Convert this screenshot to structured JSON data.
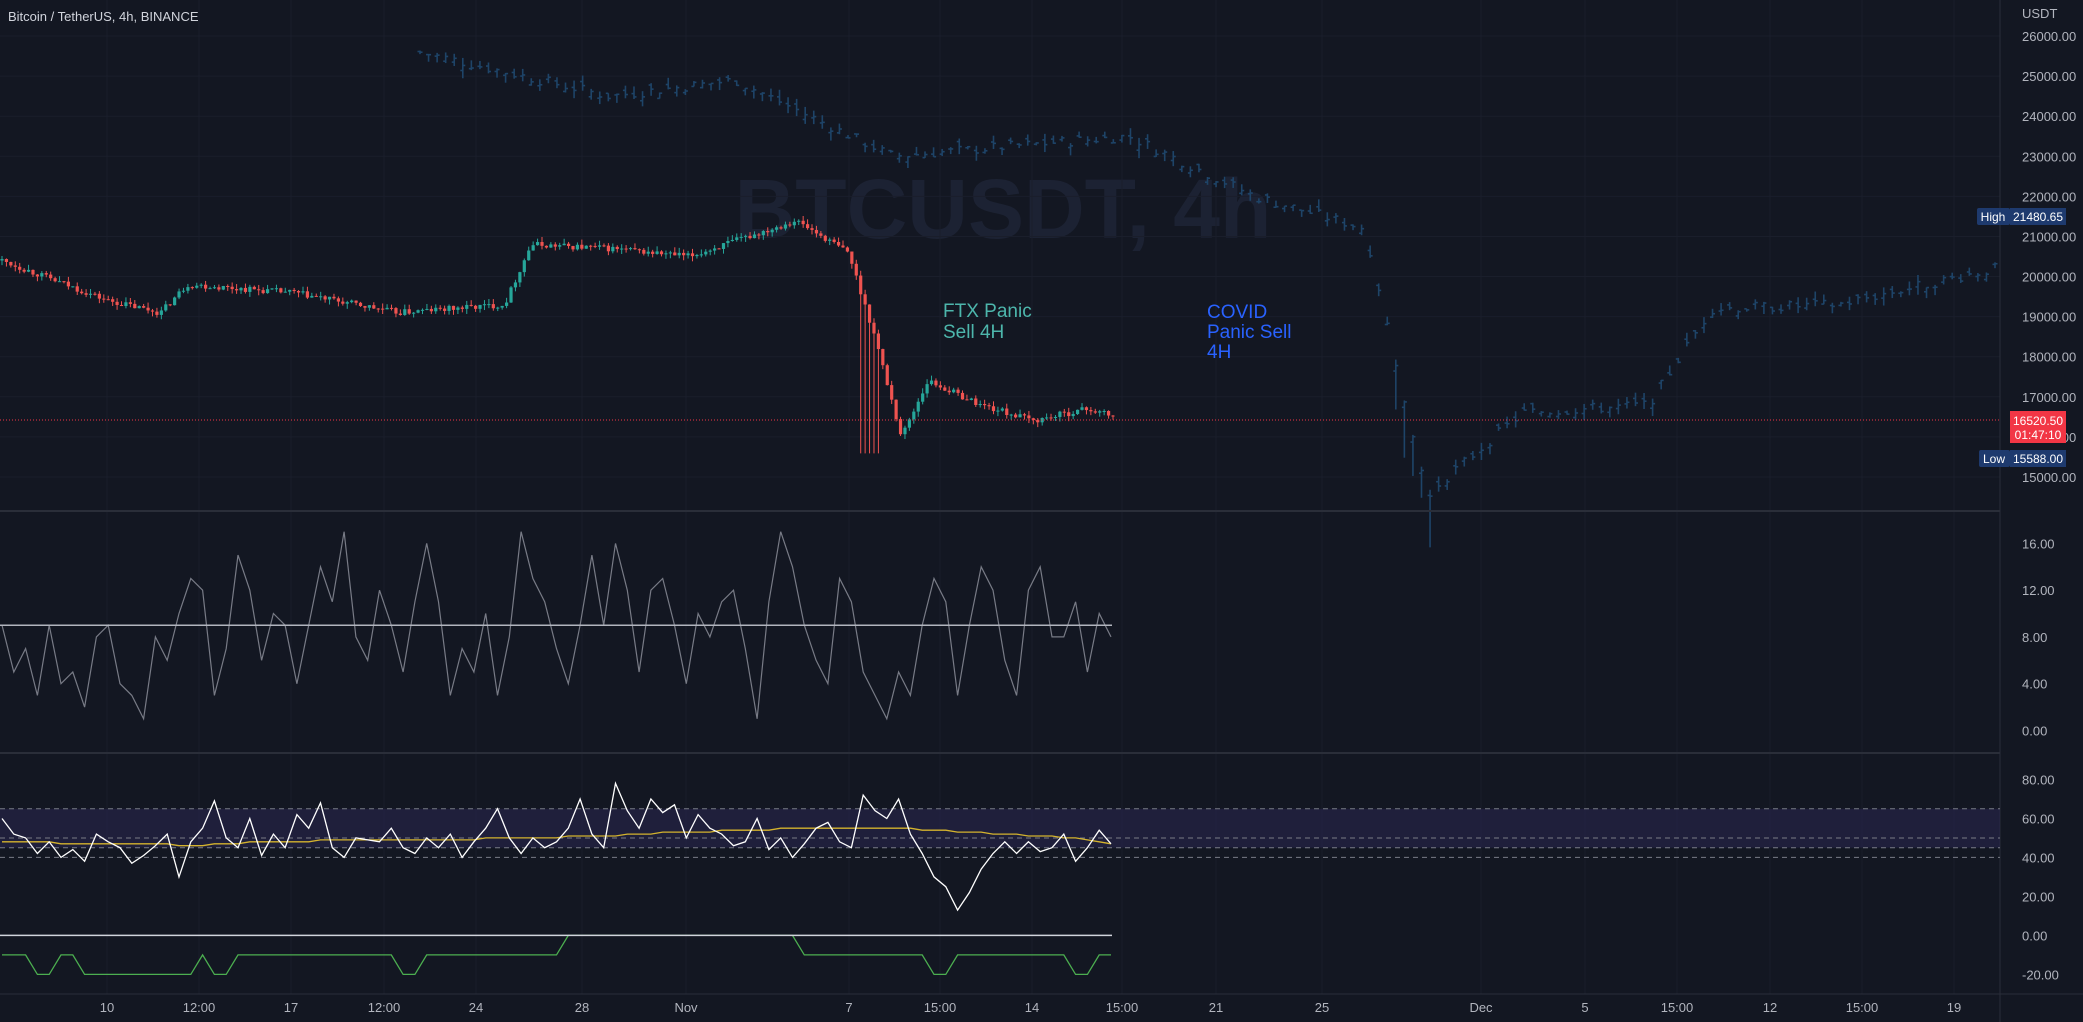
{
  "symbol_title": "Bitcoin / TetherUS, 4h, BINANCE",
  "price_axis_currency": "USDT",
  "watermark": "BTCUSDT, 4h",
  "colors": {
    "background": "#131722",
    "up": "#26a69a",
    "down": "#ef5350",
    "ghost": "#1e4468",
    "ftx_annotation": "#4db6ac",
    "covid_annotation": "#2962ff",
    "axis_text": "#b2b5be",
    "badge_blue": "#1e3a6e",
    "current_price_red": "#f23645",
    "osc_line": "#787b86",
    "rsi_line": "#ffffff",
    "rsi_ma": "#d4b32e",
    "signal_line": "#4caf50",
    "band_fill": "#2a2650"
  },
  "badges": {
    "high_label": "High",
    "high_value": "21480.65",
    "low_label": "Low",
    "low_value": "15588.00",
    "current_price": "16520.50",
    "countdown": "01:47:10"
  },
  "annotations": {
    "ftx_line1": "FTX Panic",
    "ftx_line2": "Sell 4H",
    "covid_line1": "COVID",
    "covid_line2": "Panic Sell",
    "covid_line3": "4H"
  },
  "chart_data": [
    {
      "type": "candlestick",
      "panel": "price",
      "title": "Bitcoin / TetherUS, 4h, BINANCE",
      "ylabel": "USDT",
      "ylim": [
        14300,
        26700
      ],
      "y_ticks": [
        "15000.00",
        "16000.00",
        "17000.00",
        "18000.00",
        "19000.00",
        "20000.00",
        "21000.00",
        "22000.00",
        "23000.00",
        "24000.00",
        "25000.00",
        "26000.00"
      ],
      "x_ticks": [
        "10",
        "12:00",
        "17",
        "12:00",
        "24",
        "28",
        "Nov",
        "7",
        "15:00",
        "14",
        "15:00",
        "21",
        "25",
        "Dec",
        "5",
        "15:00",
        "12",
        "15:00",
        "19"
      ],
      "series": [
        {
          "name": "BTCUSDT 4h",
          "current_price": 16520.5,
          "high_marker": 21480.65,
          "low_marker": 15588.0,
          "approx_close_path": [
            {
              "x": "Oct 6",
              "close": 20400
            },
            {
              "x": "Oct 10",
              "close": 19400
            },
            {
              "x": "Oct 12",
              "close": 19100
            },
            {
              "x": "Oct 13",
              "close": 19800
            },
            {
              "x": "Oct 17",
              "close": 19600
            },
            {
              "x": "Oct 21",
              "close": 19100
            },
            {
              "x": "Oct 25",
              "close": 19300
            },
            {
              "x": "Oct 26",
              "close": 20800
            },
            {
              "x": "Oct 29",
              "close": 20700
            },
            {
              "x": "Nov 1",
              "close": 20500
            },
            {
              "x": "Nov 5",
              "close": 21400
            },
            {
              "x": "Nov 7",
              "close": 20600
            },
            {
              "x": "Nov 8",
              "close": 18500
            },
            {
              "x": "Nov 9",
              "close": 16000
            },
            {
              "x": "Nov 10",
              "close": 17400
            },
            {
              "x": "Nov 12",
              "close": 16800
            },
            {
              "x": "Nov 14",
              "close": 16400
            },
            {
              "x": "Nov 16",
              "close": 16700
            },
            {
              "x": "Nov 17",
              "close": 16520.5
            }
          ]
        },
        {
          "name": "COVID overlay (ghost)",
          "approx_close_path": [
            {
              "x": 0,
              "close": 25600
            },
            {
              "x": 0.12,
              "close": 24500
            },
            {
              "x": 0.2,
              "close": 24900
            },
            {
              "x": 0.3,
              "close": 23000
            },
            {
              "x": 0.45,
              "close": 23500
            },
            {
              "x": 0.53,
              "close": 22000
            },
            {
              "x": 0.6,
              "close": 21200
            },
            {
              "x": 0.62,
              "close": 17800
            },
            {
              "x": 0.64,
              "close": 14600
            },
            {
              "x": 0.7,
              "close": 16600
            },
            {
              "x": 0.78,
              "close": 16800
            },
            {
              "x": 0.82,
              "close": 19200
            },
            {
              "x": 0.9,
              "close": 19300
            },
            {
              "x": 1.0,
              "close": 20200
            }
          ]
        }
      ]
    },
    {
      "type": "line",
      "panel": "oscillator",
      "ylim": [
        -1.5,
        18
      ],
      "y_ticks": [
        "0.00",
        "4.00",
        "8.00",
        "12.00",
        "16.00"
      ],
      "series": [
        {
          "values": [
            9,
            5,
            7,
            3,
            9,
            4,
            5,
            2,
            8,
            9,
            4,
            3,
            1,
            8,
            6,
            10,
            13,
            12,
            3,
            7,
            15,
            12,
            6,
            10,
            9,
            4,
            9,
            14,
            11,
            17,
            8,
            6,
            12,
            9,
            5,
            11,
            16,
            11,
            3,
            7,
            5,
            10,
            3,
            8,
            17,
            13,
            11,
            7,
            4,
            9,
            15,
            9,
            16,
            12,
            5,
            12,
            13,
            9,
            4,
            10,
            8,
            11,
            12,
            7,
            1,
            11,
            17,
            14,
            9,
            6,
            4,
            13,
            11,
            5,
            3,
            1,
            5,
            3,
            9,
            13,
            11,
            3,
            9,
            14,
            12,
            6,
            3,
            12,
            14,
            8,
            8,
            11,
            5,
            10,
            8
          ]
        }
      ],
      "reference_line": 9
    },
    {
      "type": "line",
      "panel": "rsi",
      "ylim": [
        -27,
        90
      ],
      "y_ticks": [
        "-20.00",
        "0.00",
        "20.00",
        "40.00",
        "60.00",
        "80.00"
      ],
      "bands": {
        "upper": 65,
        "middle": 50,
        "lower_a": 45,
        "lower_b": 40
      },
      "series": [
        {
          "name": "RSI",
          "values": [
            60,
            52,
            50,
            42,
            48,
            40,
            44,
            38,
            52,
            48,
            45,
            37,
            41,
            46,
            52,
            30,
            48,
            55,
            69,
            50,
            45,
            60,
            41,
            52,
            45,
            62,
            55,
            68,
            45,
            40,
            50,
            49,
            48,
            55,
            45,
            42,
            50,
            45,
            52,
            40,
            48,
            55,
            65,
            50,
            42,
            50,
            45,
            48,
            55,
            70,
            52,
            45,
            78,
            64,
            55,
            70,
            63,
            67,
            50,
            62,
            55,
            52,
            46,
            48,
            60,
            44,
            50,
            40,
            47,
            55,
            58,
            48,
            45,
            72,
            64,
            60,
            70,
            52,
            42,
            30,
            25,
            13,
            22,
            34,
            42,
            48,
            42,
            48,
            43,
            45,
            52,
            38,
            45,
            54,
            47
          ]
        },
        {
          "name": "RSI MA",
          "values": [
            48,
            48,
            48,
            48,
            48,
            47,
            47,
            47,
            47,
            47,
            47,
            47,
            47,
            47,
            47,
            46,
            46,
            46,
            47,
            47,
            47,
            48,
            48,
            48,
            48,
            48,
            48,
            49,
            49,
            49,
            49,
            49,
            49,
            49,
            49,
            49,
            49,
            49,
            49,
            49,
            49,
            50,
            50,
            50,
            50,
            50,
            50,
            50,
            51,
            51,
            51,
            51,
            51,
            52,
            52,
            52,
            53,
            53,
            53,
            53,
            53,
            54,
            54,
            54,
            54,
            54,
            55,
            55,
            55,
            55,
            55,
            55,
            55,
            55,
            55,
            55,
            55,
            55,
            54,
            54,
            54,
            53,
            53,
            53,
            52,
            52,
            52,
            51,
            51,
            51,
            50,
            50,
            49,
            48,
            47
          ]
        },
        {
          "name": "Signal",
          "values": [
            -10,
            -10,
            -10,
            -20,
            -20,
            -10,
            -10,
            -20,
            -20,
            -20,
            -20,
            -20,
            -20,
            -20,
            -20,
            -20,
            -20,
            -10,
            -20,
            -20,
            -10,
            -10,
            -10,
            -10,
            -10,
            -10,
            -10,
            -10,
            -10,
            -10,
            -10,
            -10,
            -10,
            -10,
            -20,
            -20,
            -10,
            -10,
            -10,
            -10,
            -10,
            -10,
            -10,
            -10,
            -10,
            -10,
            -10,
            -10,
            0,
            0,
            0,
            0,
            0,
            0,
            0,
            0,
            0,
            0,
            0,
            0,
            0,
            0,
            0,
            0,
            0,
            0,
            0,
            0,
            -10,
            -10,
            -10,
            -10,
            -10,
            -10,
            -10,
            -10,
            -10,
            -10,
            -10,
            -20,
            -20,
            -10,
            -10,
            -10,
            -10,
            -10,
            -10,
            -10,
            -10,
            -10,
            -10,
            -20,
            -20,
            -10,
            -10
          ]
        },
        {
          "name": "Zero line",
          "values": [
            0
          ]
        }
      ]
    }
  ]
}
